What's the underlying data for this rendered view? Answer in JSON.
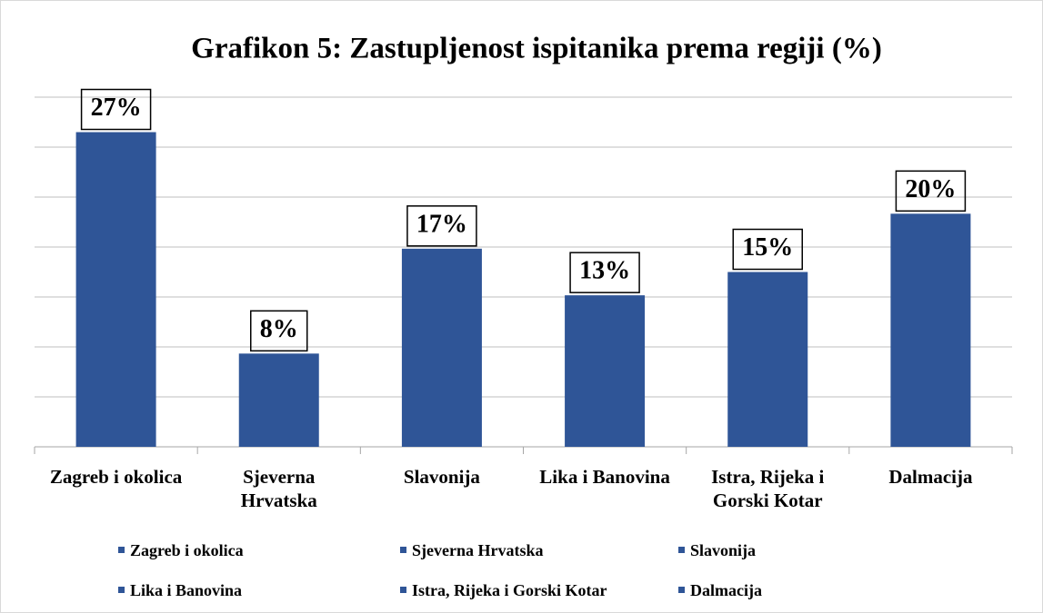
{
  "chart_data": {
    "type": "bar",
    "title": "Grafikon 5: Zastupljenost ispitanika prema regiji (%)",
    "categories": [
      "Zagreb i okolica",
      "Sjeverna Hrvatska",
      "Slavonija",
      "Lika i Banovina",
      "Istra, Rijeka i Gorski Kotar",
      "Dalmacija"
    ],
    "values": [
      27,
      8,
      17,
      13,
      15,
      20
    ],
    "value_labels": [
      "27%",
      "8%",
      "17%",
      "13%",
      "15%",
      "20%"
    ],
    "color": "#2f5597",
    "ylim": [
      0,
      30
    ],
    "grid": true,
    "legend": "bottom"
  }
}
